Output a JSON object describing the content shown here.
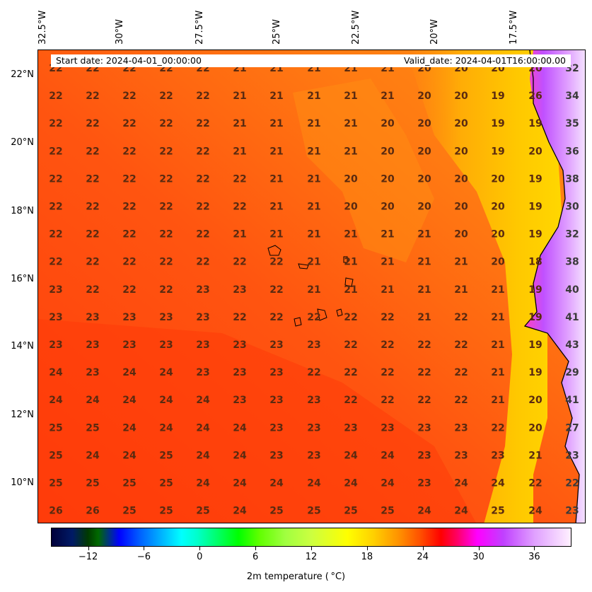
{
  "map": {
    "lon_labels": [
      "32.5°W",
      "30°W",
      "27.5°W",
      "25°W",
      "22.5°W",
      "20°W",
      "17.5°W"
    ],
    "lat_labels": [
      "22°N",
      "20°N",
      "18°N",
      "16°N",
      "14°N",
      "12°N",
      "10°N"
    ],
    "start_date": "Start date: 2024-04-01_00:00:00",
    "valid_date": "Valid_date: 2024-04-01T16:00:00.00",
    "colorbar_title": "2m temperature ( °C)",
    "colorbar_ticks": [
      "−12",
      "−6",
      "0",
      "6",
      "12",
      "18",
      "24",
      "30",
      "36"
    ],
    "colors": {
      "sea_warm": "#ff4a0e",
      "sea_mid": "#ff6a10",
      "sea_cool": "#ff8a0c",
      "near_coast": "#ffb000",
      "coast_yellow": "#ffd000",
      "land_hot": "#d070ff",
      "land_hotter": "#f0d8ff",
      "value_text": "#5a2a10"
    },
    "grid_values": [
      [
        "22",
        "22",
        "22",
        "22",
        "22",
        "21",
        "21",
        "21",
        "21",
        "21",
        "20",
        "20",
        "20",
        "20",
        "32"
      ],
      [
        "22",
        "22",
        "22",
        "22",
        "22",
        "21",
        "21",
        "21",
        "21",
        "21",
        "20",
        "20",
        "19",
        "26",
        "34"
      ],
      [
        "22",
        "22",
        "22",
        "22",
        "22",
        "21",
        "21",
        "21",
        "21",
        "20",
        "20",
        "20",
        "19",
        "19",
        "35"
      ],
      [
        "22",
        "22",
        "22",
        "22",
        "22",
        "21",
        "21",
        "21",
        "21",
        "20",
        "20",
        "20",
        "19",
        "20",
        "36"
      ],
      [
        "22",
        "22",
        "22",
        "22",
        "22",
        "22",
        "21",
        "21",
        "20",
        "20",
        "20",
        "20",
        "20",
        "19",
        "38"
      ],
      [
        "22",
        "22",
        "22",
        "22",
        "22",
        "22",
        "21",
        "21",
        "20",
        "20",
        "20",
        "20",
        "20",
        "19",
        "30"
      ],
      [
        "22",
        "22",
        "22",
        "22",
        "22",
        "21",
        "21",
        "21",
        "21",
        "21",
        "21",
        "20",
        "20",
        "19",
        "32"
      ],
      [
        "22",
        "22",
        "22",
        "22",
        "22",
        "22",
        "22",
        "21",
        "21",
        "21",
        "21",
        "21",
        "20",
        "18",
        "38"
      ],
      [
        "23",
        "22",
        "22",
        "22",
        "23",
        "23",
        "22",
        "21",
        "21",
        "21",
        "21",
        "21",
        "21",
        "19",
        "40"
      ],
      [
        "23",
        "23",
        "23",
        "23",
        "23",
        "22",
        "22",
        "22",
        "22",
        "22",
        "21",
        "22",
        "21",
        "19",
        "41"
      ],
      [
        "23",
        "23",
        "23",
        "23",
        "23",
        "23",
        "23",
        "23",
        "22",
        "22",
        "22",
        "22",
        "21",
        "19",
        "43"
      ],
      [
        "24",
        "23",
        "24",
        "24",
        "23",
        "23",
        "23",
        "22",
        "22",
        "22",
        "22",
        "22",
        "21",
        "19",
        "29"
      ],
      [
        "24",
        "24",
        "24",
        "24",
        "24",
        "23",
        "23",
        "23",
        "22",
        "22",
        "22",
        "22",
        "21",
        "20",
        "41"
      ],
      [
        "25",
        "25",
        "24",
        "24",
        "24",
        "24",
        "23",
        "23",
        "23",
        "23",
        "23",
        "23",
        "22",
        "20",
        "27"
      ],
      [
        "25",
        "24",
        "24",
        "25",
        "24",
        "24",
        "23",
        "23",
        "24",
        "24",
        "23",
        "23",
        "23",
        "21",
        "23"
      ],
      [
        "25",
        "25",
        "25",
        "25",
        "24",
        "24",
        "24",
        "24",
        "24",
        "24",
        "23",
        "24",
        "24",
        "22",
        "22"
      ],
      [
        "26",
        "26",
        "25",
        "25",
        "25",
        "24",
        "25",
        "25",
        "25",
        "25",
        "24",
        "24",
        "25",
        "24",
        "23"
      ]
    ]
  }
}
